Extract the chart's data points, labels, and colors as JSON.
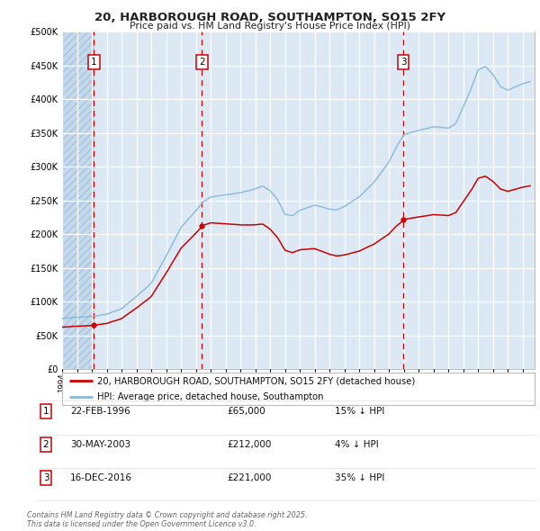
{
  "title": "20, HARBOROUGH ROAD, SOUTHAMPTON, SO15 2FY",
  "subtitle": "Price paid vs. HM Land Registry's House Price Index (HPI)",
  "legend_red": "20, HARBOROUGH ROAD, SOUTHAMPTON, SO15 2FY (detached house)",
  "legend_blue": "HPI: Average price, detached house, Southampton",
  "sale_points": [
    {
      "label": "1",
      "date_str": "22-FEB-1996",
      "date_num": 1996.14,
      "price": 65000
    },
    {
      "label": "2",
      "date_str": "30-MAY-2003",
      "date_num": 2003.41,
      "price": 212000
    },
    {
      "label": "3",
      "date_str": "16-DEC-2016",
      "date_num": 2016.96,
      "price": 221000
    }
  ],
  "sale_annotations": [
    {
      "label": "1",
      "date": "22-FEB-1996",
      "price": "£65,000",
      "pct": "15% ↓ HPI"
    },
    {
      "label": "2",
      "date": "30-MAY-2003",
      "price": "£212,000",
      "pct": "4% ↓ HPI"
    },
    {
      "label": "3",
      "date": "16-DEC-2016",
      "price": "£221,000",
      "pct": "35% ↓ HPI"
    }
  ],
  "footer": "Contains HM Land Registry data © Crown copyright and database right 2025.\nThis data is licensed under the Open Government Licence v3.0.",
  "ylim": [
    0,
    500000
  ],
  "yticks": [
    0,
    50000,
    100000,
    150000,
    200000,
    250000,
    300000,
    350000,
    400000,
    450000,
    500000
  ],
  "xlim_start": 1994.0,
  "xlim_end": 2025.8,
  "bg_color": "#dce9f5",
  "red_color": "#cc0000",
  "blue_color": "#87b8d9",
  "grid_color": "#ffffff",
  "fig_bg": "#ffffff"
}
